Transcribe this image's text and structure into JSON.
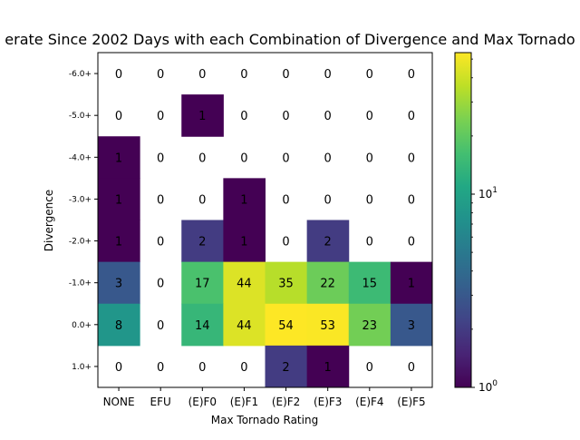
{
  "chart_data": {
    "type": "heatmap",
    "title": "erate Since 2002 Days with each Combination of Divergence and Max Tornado",
    "xlabel": "Max Tornado Rating",
    "ylabel": "Divergence",
    "x_categories": [
      "NONE",
      "EFU",
      "(E)F0",
      "(E)F1",
      "(E)F2",
      "(E)F3",
      "(E)F4",
      "(E)F5"
    ],
    "y_categories": [
      "-6.0+",
      "-5.0+",
      "-4.0+",
      "-3.0+",
      "-2.0+",
      "-1.0+",
      "0.0+",
      "1.0+"
    ],
    "values": [
      [
        0,
        0,
        0,
        0,
        0,
        0,
        0,
        0
      ],
      [
        0,
        0,
        1,
        0,
        0,
        0,
        0,
        0
      ],
      [
        1,
        0,
        0,
        0,
        0,
        0,
        0,
        0
      ],
      [
        1,
        0,
        0,
        1,
        0,
        0,
        0,
        0
      ],
      [
        1,
        0,
        2,
        1,
        0,
        2,
        0,
        0
      ],
      [
        3,
        0,
        17,
        44,
        35,
        22,
        15,
        1
      ],
      [
        8,
        0,
        14,
        44,
        54,
        53,
        23,
        3
      ],
      [
        0,
        0,
        0,
        0,
        2,
        1,
        0,
        0
      ]
    ],
    "colorscale": "viridis",
    "color_scale_type": "log",
    "color_range": [
      1,
      54
    ],
    "zero_color": "#ffffff",
    "colorbar_ticks": [
      {
        "value": 1,
        "base": "10",
        "exp": "0"
      },
      {
        "value": 10,
        "base": "10",
        "exp": "1"
      }
    ]
  }
}
